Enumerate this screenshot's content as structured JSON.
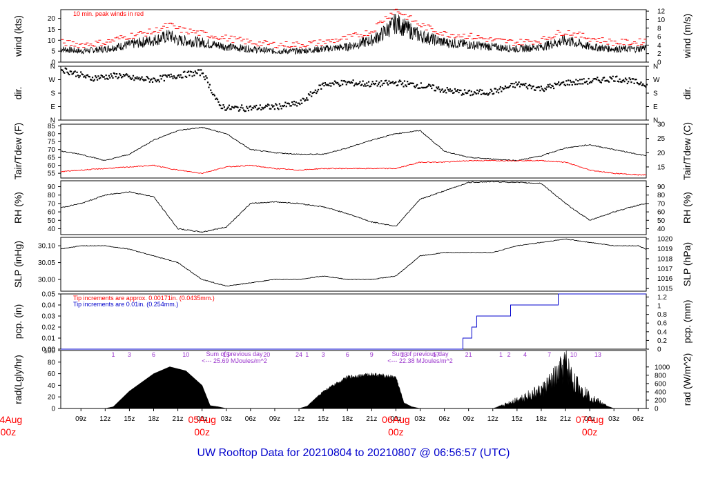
{
  "title": "UW Rooftop Data for 20210804  to  20210807 @ 06:56:57  (UTC)",
  "colors": {
    "primary": "#000000",
    "peak": "#ff0000",
    "precip_fine": "#ff0000",
    "precip_coarse": "#0000cc",
    "radiation_note": "#9933cc",
    "title": "#0000cc",
    "date": "#ff0000"
  },
  "x_axis": {
    "start_hour_utc": 6.5,
    "end_hour_utc": 79,
    "tick_labels": [
      "09z",
      "12z",
      "15z",
      "18z",
      "21z",
      "00z",
      "03z",
      "06z",
      "09z",
      "12z",
      "15z",
      "18z",
      "21z",
      "00z",
      "03z",
      "06z",
      "09z",
      "12z",
      "15z",
      "18z",
      "21z",
      "00z",
      "03z",
      "06z"
    ],
    "tick_hours": [
      9,
      12,
      15,
      18,
      21,
      24,
      27,
      30,
      33,
      36,
      39,
      42,
      45,
      48,
      51,
      54,
      57,
      60,
      63,
      66,
      69,
      72,
      75,
      78
    ],
    "date_markers": [
      {
        "date": "04Aug",
        "time": "00z",
        "hour": 0
      },
      {
        "date": "05Aug",
        "time": "00z",
        "hour": 24
      },
      {
        "date": "06Aug",
        "time": "00z",
        "hour": 48
      },
      {
        "date": "07Aug",
        "time": "00z",
        "hour": 72
      }
    ]
  },
  "chart_data": [
    {
      "type": "line",
      "panel": "wind",
      "ylabel": "wind (kts)",
      "ylabel_right": "wind (m/s)",
      "ylim": [
        0,
        24
      ],
      "yticks": [
        "0",
        "5",
        "10",
        "15",
        "20"
      ],
      "yticks_right": [
        "0",
        "2",
        "4",
        "6",
        "8",
        "10",
        "12"
      ],
      "note": "10 min. peak winds in red",
      "x": [
        6.5,
        9,
        12,
        15,
        18,
        20,
        21,
        24,
        27,
        30,
        33,
        36,
        39,
        42,
        45,
        46,
        48,
        51,
        54,
        57,
        60,
        63,
        66,
        68,
        69,
        72,
        75,
        78,
        79
      ],
      "values": [
        6,
        5,
        6,
        8,
        10,
        12,
        10,
        9,
        7,
        6,
        5,
        5,
        6,
        7,
        10,
        12,
        18,
        12,
        9,
        8,
        7,
        6,
        7,
        9,
        10,
        7,
        6,
        6,
        7
      ],
      "peak_values": [
        9,
        8,
        9,
        12,
        14,
        17,
        15,
        13,
        11,
        9,
        8,
        8,
        9,
        11,
        14,
        18,
        24,
        17,
        13,
        12,
        10,
        9,
        10,
        13,
        14,
        11,
        9,
        9,
        10
      ]
    },
    {
      "type": "scatter",
      "panel": "direction",
      "ylabel": "dir.",
      "ylabel_right": "dir.",
      "ycats": [
        "N",
        "E",
        "S",
        "W",
        "N"
      ],
      "x": [
        6.5,
        9,
        10,
        12,
        14,
        15,
        18,
        20,
        21,
        24,
        26,
        27,
        30,
        33,
        36,
        39,
        42,
        45,
        48,
        51,
        54,
        57,
        60,
        63,
        66,
        69,
        72,
        75,
        78,
        79
      ],
      "values": [
        340,
        300,
        280,
        290,
        300,
        280,
        270,
        290,
        300,
        320,
        100,
        80,
        80,
        90,
        110,
        240,
        250,
        240,
        250,
        230,
        200,
        180,
        190,
        240,
        210,
        250,
        260,
        280,
        250,
        240
      ]
    },
    {
      "type": "line",
      "panel": "temperature",
      "ylabel": "Tair/Tdew (F)",
      "ylabel_right": "Tair/Tdew (C)",
      "ylim": [
        52,
        86
      ],
      "yticks": [
        "55",
        "60",
        "65",
        "70",
        "75",
        "80",
        "85"
      ],
      "yticks_right": [
        "15",
        "20",
        "25",
        "30"
      ],
      "series": [
        {
          "key": "tair",
          "x": [
            6.5,
            9,
            12,
            15,
            18,
            21,
            24,
            27,
            30,
            33,
            36,
            39,
            42,
            45,
            48,
            51,
            54,
            57,
            60,
            63,
            66,
            69,
            72,
            75,
            78,
            79
          ],
          "values": [
            69,
            67,
            63,
            67,
            76,
            82,
            84,
            80,
            70,
            68,
            67,
            67,
            71,
            76,
            80,
            82,
            69,
            65,
            64,
            63,
            66,
            71,
            73,
            70,
            67,
            66
          ]
        },
        {
          "key": "tdew",
          "x": [
            6.5,
            9,
            12,
            15,
            18,
            21,
            24,
            27,
            30,
            33,
            36,
            39,
            42,
            45,
            48,
            51,
            54,
            57,
            60,
            63,
            66,
            69,
            72,
            75,
            78,
            79
          ],
          "values": [
            56,
            57,
            58,
            59,
            60,
            57,
            55,
            59,
            60,
            58,
            57,
            58,
            58,
            58,
            58,
            62,
            62,
            63,
            63,
            63,
            63,
            62,
            57,
            55,
            54,
            54
          ]
        }
      ]
    },
    {
      "type": "line",
      "panel": "humidity",
      "ylabel": "RH (%)",
      "ylabel_right": "RH (%)",
      "ylim": [
        33,
        97
      ],
      "yticks": [
        "40",
        "50",
        "60",
        "70",
        "80",
        "90"
      ],
      "yticks_right": [
        "40",
        "50",
        "60",
        "70",
        "80",
        "90"
      ],
      "x": [
        6.5,
        9,
        12,
        15,
        18,
        21,
        24,
        27,
        30,
        33,
        36,
        39,
        42,
        45,
        48,
        51,
        54,
        57,
        60,
        63,
        66,
        69,
        72,
        75,
        78,
        79
      ],
      "values": [
        65,
        70,
        80,
        84,
        78,
        40,
        36,
        42,
        70,
        72,
        70,
        66,
        58,
        48,
        43,
        75,
        85,
        95,
        96,
        95,
        94,
        70,
        50,
        60,
        68,
        70
      ]
    },
    {
      "type": "line",
      "panel": "pressure",
      "ylabel": "SLP (inHg)",
      "ylabel_right": "SLP (hPa)",
      "ylim": [
        29.965,
        30.125
      ],
      "yticks": [
        "30.00",
        "30.05",
        "30.10"
      ],
      "yticks_right": [
        "1015",
        "1016",
        "1017",
        "1018",
        "1019",
        "1020"
      ],
      "x": [
        6.5,
        9,
        12,
        15,
        18,
        21,
        24,
        27,
        30,
        33,
        36,
        39,
        42,
        45,
        48,
        51,
        54,
        57,
        60,
        63,
        66,
        69,
        72,
        75,
        78,
        79
      ],
      "values": [
        30.09,
        30.1,
        30.1,
        30.09,
        30.07,
        30.05,
        30.0,
        29.98,
        29.99,
        30.0,
        30.0,
        30.01,
        30.0,
        30.0,
        30.01,
        30.07,
        30.08,
        30.08,
        30.08,
        30.1,
        30.11,
        30.12,
        30.11,
        30.1,
        30.1,
        30.09
      ]
    },
    {
      "type": "line",
      "panel": "precipitation",
      "ylabel": "pcp. (in)",
      "ylabel_right": "pcp. (mm)",
      "ylim": [
        0,
        0.05
      ],
      "yticks": [
        "0.00",
        "0.01",
        "0.02",
        "0.03",
        "0.04",
        "0.05"
      ],
      "yticks_right": [
        "0",
        "0.2",
        "0.4",
        "0.6",
        "0.8",
        "1",
        "1.2"
      ],
      "note_fine": "Tip increments are approx. 0.00171in. (0.0435mm.)",
      "note_coarse": "Tip increments are 0.01in. (0.254mm.)",
      "x": [
        6.5,
        54,
        56,
        56.3,
        57,
        57.4,
        58,
        62,
        62.2,
        68,
        68.1,
        79
      ],
      "values": [
        0,
        0,
        0,
        0.01,
        0.01,
        0.02,
        0.03,
        0.03,
        0.04,
        0.04,
        0.05,
        0.05
      ]
    },
    {
      "type": "area",
      "panel": "radiation",
      "ylabel": "rad(Lgly/hr)",
      "ylabel_right": "rad (W/m^2)",
      "ylim": [
        0,
        100
      ],
      "yticks": [
        "0",
        "20",
        "40",
        "60",
        "80",
        "100"
      ],
      "yticks_right": [
        "0",
        "200",
        "400",
        "600",
        "800",
        "1000"
      ],
      "x": [
        6.5,
        12,
        13,
        15,
        18,
        20,
        22,
        24,
        25,
        26,
        27,
        36,
        37,
        39,
        42,
        45,
        48,
        49,
        50,
        51,
        60,
        61,
        63,
        66,
        68,
        69,
        70,
        72,
        74,
        75,
        79
      ],
      "values": [
        0,
        0,
        3,
        30,
        60,
        72,
        65,
        40,
        5,
        3,
        0,
        0,
        4,
        30,
        55,
        60,
        55,
        10,
        3,
        0,
        0,
        4,
        15,
        30,
        55,
        75,
        45,
        20,
        5,
        0,
        0
      ],
      "hour_labels": [
        {
          "row": [
            {
              "t": "1",
              "h": 13
            },
            {
              "t": "3",
              "h": 15
            },
            {
              "t": "6",
              "h": 18
            },
            {
              "t": "10",
              "h": 22
            },
            {
              "t": "15",
              "h": 27
            },
            {
              "t": "20",
              "h": 32
            },
            {
              "t": "24",
              "h": 36
            }
          ]
        },
        {
          "row": [
            {
              "t": "1",
              "h": 37
            },
            {
              "t": "3",
              "h": 39
            },
            {
              "t": "6",
              "h": 42
            },
            {
              "t": "9",
              "h": 45
            },
            {
              "t": "13",
              "h": 49
            },
            {
              "t": "17",
              "h": 53
            },
            {
              "t": "21",
              "h": 57
            }
          ]
        },
        {
          "row": [
            {
              "t": "1",
              "h": 61
            },
            {
              "t": "2",
              "h": 62
            },
            {
              "t": "4",
              "h": 64
            },
            {
              "t": "7",
              "h": 67
            },
            {
              "t": "10",
              "h": 70
            },
            {
              "t": "13",
              "h": 73
            }
          ]
        }
      ],
      "sum_notes": [
        {
          "line1": "Sum of previous day",
          "line2": "<--- 25.69 MJoules/m^2"
        },
        {
          "line1": "Sum of previous day",
          "line2": "<--- 22.38 MJoules/m^2"
        }
      ]
    }
  ]
}
